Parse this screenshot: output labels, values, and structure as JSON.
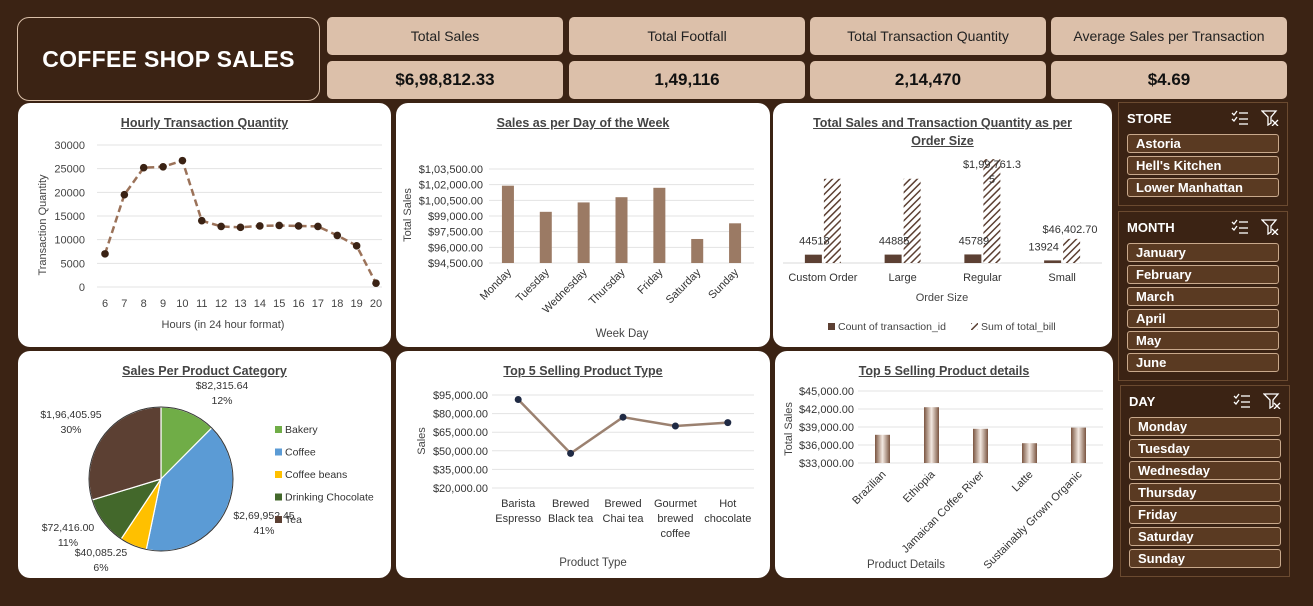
{
  "header": {
    "title": "COFFEE SHOP SALES"
  },
  "kpis": [
    {
      "label": "Total Sales",
      "value": "$6,98,812.33"
    },
    {
      "label": "Total Footfall",
      "value": "1,49,116"
    },
    {
      "label": "Total Transaction Quantity",
      "value": "2,14,470"
    },
    {
      "label": "Average Sales per Transaction",
      "value": "$4.69"
    }
  ],
  "colors": {
    "background": "#3b2314",
    "kpi": "#dcc0aa",
    "bar": "#9b7a64",
    "line": "#9b8170",
    "dark_brown": "#5c4033"
  },
  "chart_data": [
    {
      "type": "line",
      "title": "Hourly Transaction Quantity",
      "xlabel": "Hours (in 24 hour format)",
      "ylabel": "Transaction Quantity",
      "x": [
        6,
        7,
        8,
        9,
        10,
        11,
        12,
        13,
        14,
        15,
        16,
        17,
        18,
        19,
        20
      ],
      "y_ticks": [
        "0",
        "5000",
        "10000",
        "15000",
        "20000",
        "25000",
        "30000"
      ],
      "ylim": [
        0,
        30000
      ],
      "values": [
        7000,
        19500,
        25200,
        25400,
        26700,
        14000,
        12800,
        12600,
        12900,
        13000,
        12900,
        12800,
        10900,
        8700,
        800
      ]
    },
    {
      "type": "bar",
      "title": "Sales as per Day of the Week",
      "xlabel": "Week Day",
      "ylabel": "Total Sales",
      "categories": [
        "Monday",
        "Tuesday",
        "Wednesday",
        "Thursday",
        "Friday",
        "Saturday",
        "Sunday"
      ],
      "y_ticks": [
        "$94,500.00",
        "$96,000.00",
        "$97,500.00",
        "$99,000.00",
        "$1,00,500.00",
        "$1,02,000.00",
        "$1,03,500.00"
      ],
      "ylim": [
        94500,
        103500
      ],
      "values": [
        101900,
        99400,
        100300,
        100800,
        101700,
        96800,
        98300
      ]
    },
    {
      "type": "bar",
      "title": "Total Sales and Transaction Quantity as per Order Size",
      "xlabel": "Order Size",
      "categories": [
        "Custom Order",
        "Large",
        "Regular",
        "Small"
      ],
      "series": [
        {
          "name": "Count of transaction_id",
          "values": [
            44518,
            44885,
            45789,
            13924
          ],
          "labels": [
            "44518",
            "44885",
            "45789",
            "13924"
          ]
        },
        {
          "name": "Sum of total_bill",
          "values": [
            162000,
            162000,
            199761.35,
            46402.7
          ],
          "labels": [
            "",
            "",
            "$1,99,761.35",
            "$46,402.70"
          ]
        }
      ],
      "ylim": [
        0,
        250000
      ]
    },
    {
      "type": "pie",
      "title": "Sales Per Product Category",
      "categories": [
        "Bakery",
        "Coffee",
        "Coffee beans",
        "Drinking Chocolate",
        "Tea"
      ],
      "values": [
        82315.64,
        269952.45,
        40085.25,
        72416.0,
        196405.95
      ],
      "value_labels": [
        "$82,315.64",
        "$2,69,952.45",
        "$40,085.25",
        "$72,416.00",
        "$1,96,405.95"
      ],
      "percent_labels": [
        "12%",
        "41%",
        "6%",
        "11%",
        "30%"
      ],
      "colors": [
        "#70ad47",
        "#5b9bd5",
        "#ffc000",
        "#43682b",
        "#5c4033"
      ]
    },
    {
      "type": "line",
      "title": "Top 5 Selling Product Type",
      "xlabel": "Product Type",
      "ylabel": "Sales",
      "categories": [
        "Barista Espresso",
        "Brewed Black tea",
        "Brewed Chai tea",
        "Gourmet brewed coffee",
        "Hot chocolate"
      ],
      "y_ticks": [
        "$20,000.00",
        "$35,000.00",
        "$50,000.00",
        "$65,000.00",
        "$80,000.00",
        "$95,000.00"
      ],
      "ylim": [
        20000,
        95000
      ],
      "values": [
        91400,
        47900,
        77100,
        70000,
        72700
      ]
    },
    {
      "type": "bar",
      "title": "Top 5 Selling Product details",
      "xlabel": "Product Details",
      "ylabel": "Total Sales",
      "categories": [
        "Brazilian",
        "Ethiopia",
        "Jamaican Coffee River",
        "Latte",
        "Sustainably Grown Organic"
      ],
      "y_ticks": [
        "$33,000.00",
        "$36,000.00",
        "$39,000.00",
        "$42,000.00",
        "$45,000.00"
      ],
      "ylim": [
        33000,
        45000
      ],
      "values": [
        37700,
        42300,
        38700,
        36300,
        38900
      ]
    }
  ],
  "slicers": {
    "store": {
      "title": "STORE",
      "items": [
        "Astoria",
        "Hell's Kitchen",
        "Lower Manhattan"
      ]
    },
    "month": {
      "title": "MONTH",
      "items": [
        "January",
        "February",
        "March",
        "April",
        "May",
        "June"
      ]
    },
    "day": {
      "title": "DAY",
      "items": [
        "Monday",
        "Tuesday",
        "Wednesday",
        "Thursday",
        "Friday",
        "Saturday",
        "Sunday"
      ]
    },
    "icons": [
      "multi-select-icon",
      "clear-filter-icon"
    ]
  }
}
